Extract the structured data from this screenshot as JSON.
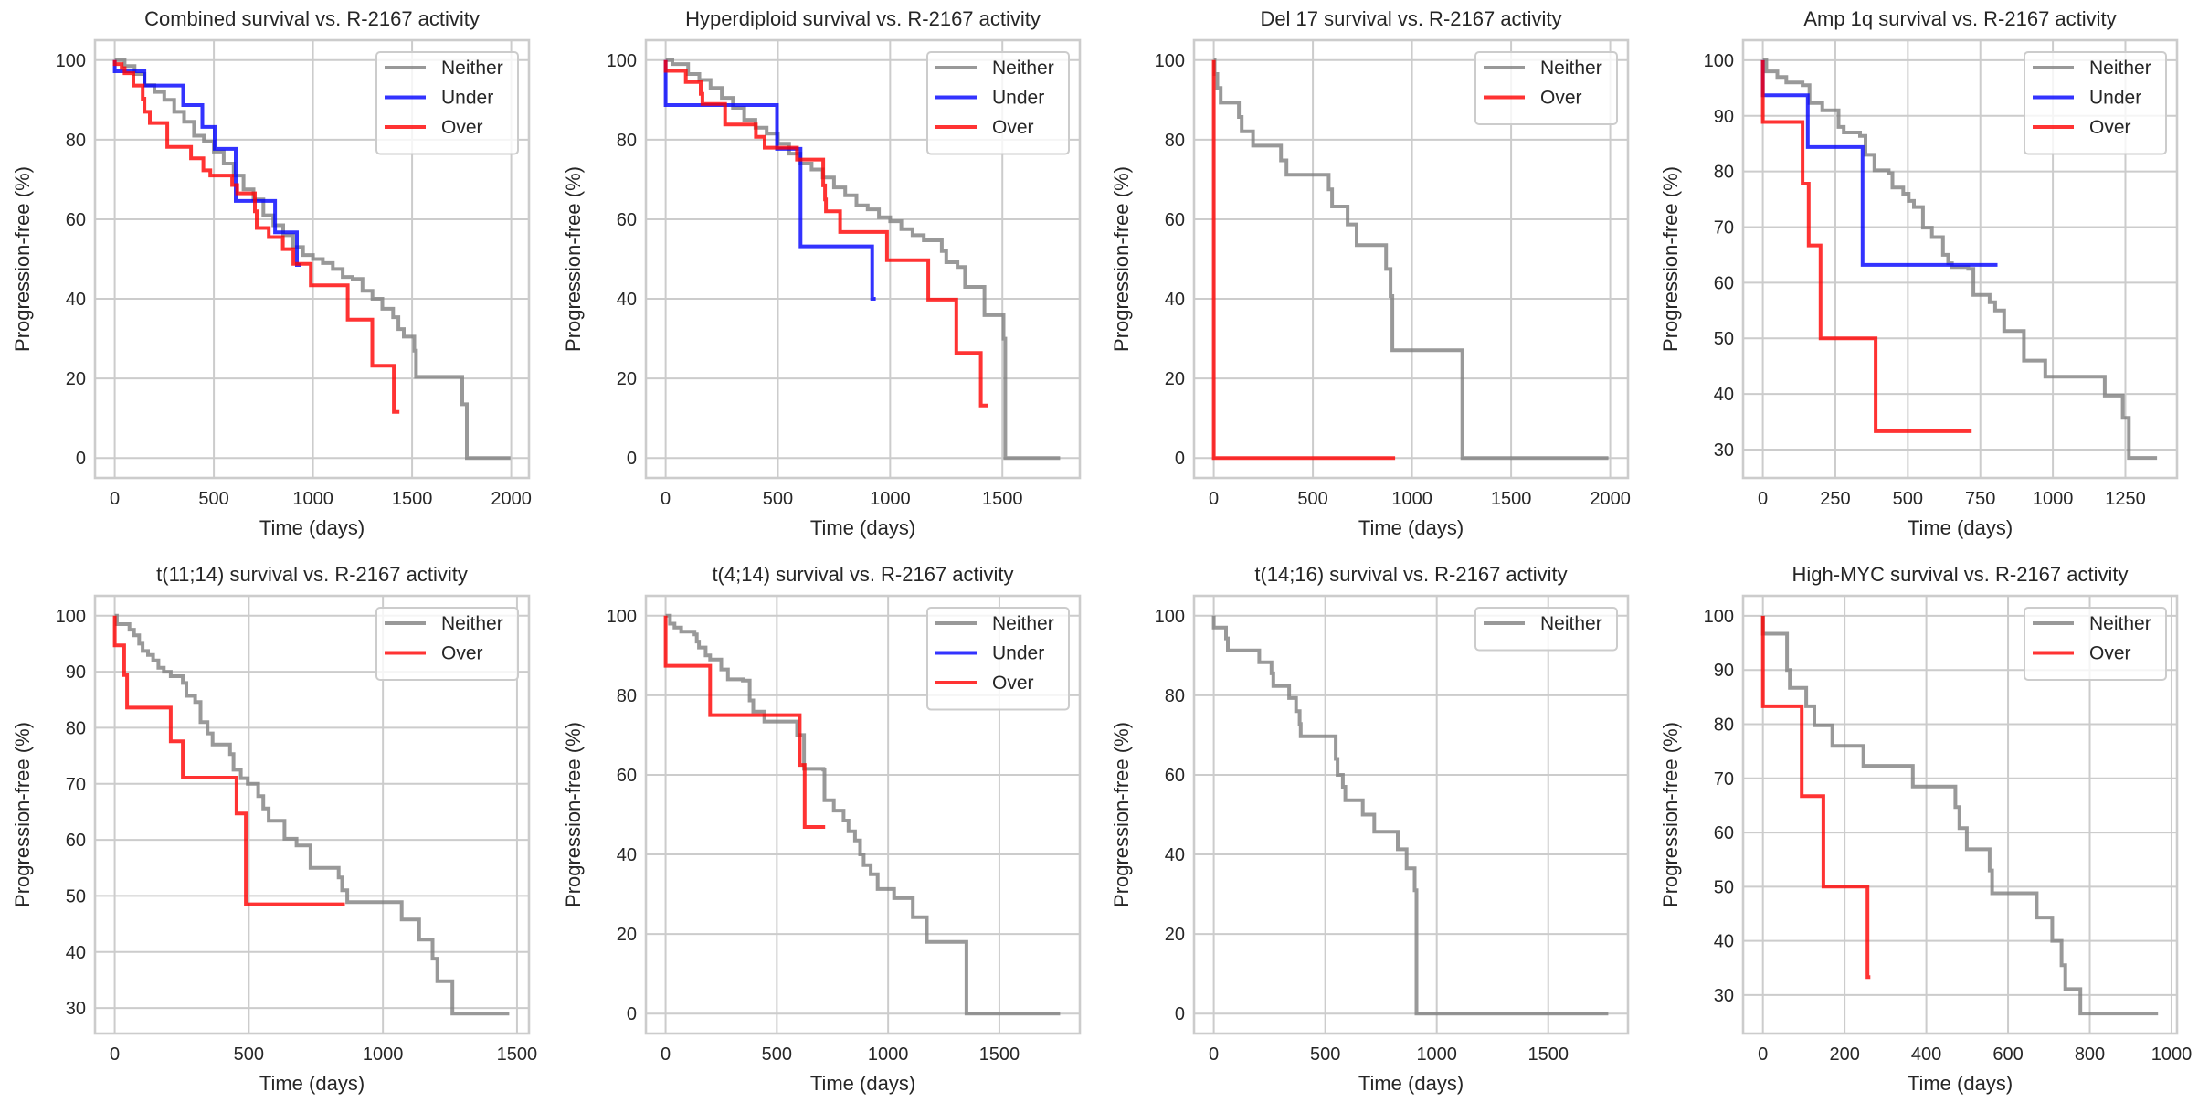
{
  "colors": {
    "Neither": "#808080",
    "Under": "#0000ff",
    "Over": "#ff0000"
  },
  "chart_data": [
    {
      "type": "line",
      "step": true,
      "title": "Combined survival vs. R-2167 activity",
      "xlabel": "Time (days)",
      "ylabel": "Progression-free (%)",
      "xlim": [
        -99.5,
        2089.5
      ],
      "ylim": [
        -5,
        105
      ],
      "xticks": [
        0,
        500,
        1000,
        1500,
        2000
      ],
      "yticks": [
        0,
        20,
        40,
        60,
        80,
        100
      ],
      "grid": true,
      "legend": {
        "position": "top-right",
        "entries": [
          "Neither",
          "Under",
          "Over"
        ]
      },
      "series": [
        {
          "name": "Neither",
          "x": [
            0,
            50,
            100,
            150,
            200,
            250,
            300,
            350,
            400,
            450,
            500,
            550,
            600,
            650,
            700,
            750,
            800,
            850,
            900,
            950,
            1000,
            1050,
            1100,
            1150,
            1200,
            1250,
            1300,
            1350,
            1404,
            1431,
            1458,
            1511,
            1520,
            1753,
            1776,
            1996
          ],
          "y": [
            100,
            98.5,
            96.5,
            93.7,
            92,
            90,
            87,
            84.5,
            81,
            79.5,
            77,
            74,
            71,
            67.5,
            65,
            61,
            58.5,
            56,
            53,
            51,
            50,
            49,
            47.5,
            45.5,
            45,
            42,
            40,
            37.5,
            35.4,
            32.4,
            30.5,
            27,
            20.4,
            13.5,
            0,
            0
          ]
        },
        {
          "name": "Under",
          "x": [
            0,
            0,
            150,
            345,
            442,
            504,
            610,
            809,
            919,
            940
          ],
          "y": [
            100,
            97.2,
            93.6,
            88.7,
            83.2,
            77.7,
            64.6,
            56.7,
            48.5,
            48.5
          ]
        },
        {
          "name": "Over",
          "x": [
            0,
            0,
            35,
            50,
            94,
            141,
            150,
            177,
            265,
            385,
            447,
            482,
            592,
            618,
            707,
            716,
            777,
            848,
            901,
            989,
            1175,
            1299,
            1408,
            1436
          ],
          "y": [
            100,
            99,
            98,
            96.7,
            93.6,
            90.3,
            87,
            84.2,
            78.2,
            75.3,
            72.3,
            71,
            68.6,
            66.5,
            62,
            57.8,
            55.5,
            52.5,
            48.8,
            43.4,
            34.8,
            23.2,
            11.6,
            11.6
          ]
        }
      ]
    },
    {
      "type": "line",
      "step": true,
      "title": "Hyperdiploid survival vs. R-2167 activity",
      "xlabel": "Time (days)",
      "ylabel": "Progression-free (%)",
      "xlim": [
        -88,
        1845
      ],
      "ylim": [
        -5,
        105
      ],
      "xticks": [
        0,
        500,
        1000,
        1500
      ],
      "yticks": [
        0,
        20,
        40,
        60,
        80,
        100
      ],
      "grid": true,
      "legend": {
        "position": "top-right",
        "entries": [
          "Neither",
          "Under",
          "Over"
        ]
      },
      "series": [
        {
          "name": "Neither",
          "x": [
            0,
            30,
            100,
            150,
            200,
            250,
            300,
            350,
            400,
            450,
            500,
            550,
            600,
            650,
            700,
            750,
            800,
            850,
            900,
            950,
            1000,
            1050,
            1100,
            1150,
            1200,
            1230,
            1250,
            1300,
            1334,
            1420,
            1505,
            1513,
            1757
          ],
          "y": [
            100,
            99,
            96.5,
            95,
            93,
            90.5,
            88,
            85,
            83,
            81.5,
            79,
            76.5,
            74,
            72.5,
            70.5,
            68,
            66,
            63.5,
            62.5,
            60.5,
            59.5,
            57.5,
            56,
            54.7,
            54.7,
            52,
            49.2,
            48,
            43,
            35.9,
            30,
            0,
            0
          ]
        },
        {
          "name": "Under",
          "x": [
            0,
            0,
            496,
            601,
            920,
            936
          ],
          "y": [
            100,
            88.7,
            77.7,
            53.2,
            40,
            40
          ]
        },
        {
          "name": "Over",
          "x": [
            0,
            0,
            90,
            156,
            164,
            265,
            402,
            441,
            585,
            702,
            710,
            714,
            777,
            986,
            1170,
            1295,
            1404,
            1435
          ],
          "y": [
            100,
            97.3,
            94.5,
            91.5,
            89,
            83.8,
            80.7,
            78,
            75,
            68.5,
            65,
            62,
            56.8,
            49.7,
            39.8,
            26.4,
            13.2,
            13.2
          ]
        }
      ]
    },
    {
      "type": "line",
      "step": true,
      "title": "Del 17 survival vs. R-2167 activity",
      "xlabel": "Time (days)",
      "ylabel": "Progression-free (%)",
      "xlim": [
        -99.5,
        2089.5
      ],
      "ylim": [
        -5,
        105
      ],
      "xticks": [
        0,
        500,
        1000,
        1500,
        2000
      ],
      "yticks": [
        0,
        20,
        40,
        60,
        80,
        100
      ],
      "grid": true,
      "legend": {
        "position": "top-right",
        "entries": [
          "Neither",
          "Over"
        ]
      },
      "series": [
        {
          "name": "Neither",
          "x": [
            0,
            4,
            18,
            35,
            127,
            141,
            198,
            339,
            367,
            580,
            597,
            675,
            721,
            869,
            892,
            901,
            1254,
            1991
          ],
          "y": [
            100,
            96.5,
            93,
            89.3,
            85.7,
            82.1,
            78.5,
            74.8,
            71.2,
            67.5,
            63.2,
            58.7,
            53.5,
            47.5,
            40.7,
            27.1,
            0,
            0
          ]
        },
        {
          "name": "Over",
          "x": [
            0,
            0,
            915
          ],
          "y": [
            100,
            0,
            0
          ]
        }
      ]
    },
    {
      "type": "line",
      "step": true,
      "title": "Amp 1q survival vs. R-2167 activity",
      "xlabel": "Time (days)",
      "ylabel": "Progression-free (%)",
      "xlim": [
        -68,
        1428
      ],
      "ylim": [
        24.9,
        103.6
      ],
      "xticks": [
        0,
        250,
        500,
        750,
        1000,
        1250
      ],
      "yticks": [
        30,
        40,
        50,
        60,
        70,
        80,
        90,
        100
      ],
      "grid": true,
      "legend": {
        "position": "top-right",
        "entries": [
          "Neither",
          "Under",
          "Over"
        ]
      },
      "series": [
        {
          "name": "Neither",
          "x": [
            0,
            12,
            50,
            81,
            137,
            161,
            205,
            261,
            279,
            335,
            354,
            385,
            434,
            447,
            484,
            503,
            521,
            552,
            583,
            621,
            639,
            652,
            708,
            726,
            782,
            801,
            832,
            881,
            900,
            974,
            1179,
            1241,
            1262,
            1359
          ],
          "y": [
            100,
            98,
            97,
            96,
            95.5,
            92.3,
            91,
            88,
            87,
            86.4,
            83,
            80.2,
            79.7,
            77.1,
            76,
            74.7,
            73.6,
            69.9,
            68.2,
            65,
            63.5,
            62.8,
            62.5,
            57.8,
            56.5,
            55,
            51.3,
            51.3,
            46,
            43.1,
            39.7,
            35.7,
            28.5,
            28.5
          ]
        },
        {
          "name": "Under",
          "x": [
            0,
            0,
            155,
            344,
            809
          ],
          "y": [
            100,
            93.7,
            84.4,
            63.2,
            63.2
          ]
        },
        {
          "name": "Over",
          "x": [
            0,
            0,
            137,
            158,
            199,
            389,
            720
          ],
          "y": [
            100,
            88.9,
            77.8,
            66.7,
            50,
            33.3,
            33.3
          ]
        }
      ]
    },
    {
      "type": "line",
      "step": true,
      "title": "t(11;14) survival vs. R-2167 activity",
      "xlabel": "Time (days)",
      "ylabel": "Progression-free (%)",
      "xlim": [
        -73.5,
        1544.5
      ],
      "ylim": [
        25.45,
        103.55
      ],
      "xticks": [
        0,
        500,
        1000,
        1500
      ],
      "yticks": [
        30,
        40,
        50,
        60,
        70,
        80,
        90,
        100
      ],
      "grid": true,
      "legend": {
        "position": "top-right",
        "entries": [
          "Neither",
          "Over"
        ]
      },
      "series": [
        {
          "name": "Neither",
          "x": [
            0,
            8,
            55,
            72,
            91,
            104,
            124,
            143,
            163,
            183,
            209,
            254,
            267,
            300,
            320,
            346,
            365,
            430,
            443,
            470,
            496,
            535,
            554,
            574,
            633,
            678,
            730,
            835,
            848,
            867,
            1070,
            1135,
            1185,
            1203,
            1259,
            1471
          ],
          "y": [
            100,
            98.5,
            97.5,
            96.5,
            95,
            93.7,
            93,
            92,
            90.7,
            90,
            89.2,
            88,
            85.7,
            84.6,
            81,
            79,
            77,
            75.3,
            72.5,
            71,
            70,
            67.8,
            65.6,
            63.4,
            60.2,
            59,
            55,
            53.3,
            51,
            48.9,
            45.8,
            42.2,
            38.8,
            34.8,
            29,
            29
          ]
        },
        {
          "name": "Over",
          "x": [
            0,
            0,
            35,
            46,
            209,
            254,
            454,
            489,
            858
          ],
          "y": [
            100,
            94.7,
            89.4,
            83.6,
            77.6,
            71.1,
            64.7,
            48.5,
            48.5
          ]
        }
      ]
    },
    {
      "type": "line",
      "step": true,
      "title": "t(4;14) survival vs. R-2167 activity",
      "xlabel": "Time (days)",
      "ylabel": "Progression-free (%)",
      "xlim": [
        -88.5,
        1861.5
      ],
      "ylim": [
        -5,
        105
      ],
      "xticks": [
        0,
        500,
        1000,
        1500
      ],
      "yticks": [
        0,
        20,
        40,
        60,
        80,
        100
      ],
      "grid": true,
      "legend": {
        "position": "top-right",
        "entries": [
          "Neither",
          "Under",
          "Over"
        ]
      },
      "series": [
        {
          "name": "Neither",
          "x": [
            0,
            20,
            40,
            70,
            130,
            140,
            150,
            180,
            200,
            250,
            280,
            347,
            378,
            394,
            444,
            575,
            591,
            622,
            709,
            714,
            756,
            800,
            822,
            851,
            874,
            890,
            922,
            953,
            1027,
            1111,
            1174,
            1352,
            1773
          ],
          "y": [
            100,
            98,
            97,
            96,
            95.3,
            93.5,
            92,
            90,
            89,
            86.5,
            84,
            83.7,
            78.7,
            75.9,
            73.4,
            73.4,
            70,
            61.5,
            61.3,
            53.6,
            51,
            48.5,
            45.8,
            43.5,
            40,
            37.3,
            35,
            31.3,
            29,
            24.2,
            18,
            0,
            0
          ]
        },
        {
          "name": "Under",
          "x": [],
          "y": []
        },
        {
          "name": "Over",
          "x": [
            0,
            0,
            200,
            603,
            625,
            717
          ],
          "y": [
            100,
            87.4,
            75,
            62.5,
            46.9,
            46.9
          ]
        }
      ]
    },
    {
      "type": "line",
      "step": true,
      "title": "t(14;16) survival vs. R-2167 activity",
      "xlabel": "Time (days)",
      "ylabel": "Progression-free (%)",
      "xlim": [
        -88.5,
        1857.5
      ],
      "ylim": [
        -5,
        105
      ],
      "xticks": [
        0,
        500,
        1000,
        1500
      ],
      "yticks": [
        0,
        20,
        40,
        60,
        80,
        100
      ],
      "grid": true,
      "legend": {
        "position": "top-right",
        "entries": [
          "Neither"
        ]
      },
      "series": [
        {
          "name": "Neither",
          "x": [
            0,
            0,
            55,
            63,
            204,
            259,
            267,
            338,
            369,
            385,
            390,
            547,
            555,
            579,
            590,
            668,
            720,
            825,
            865,
            901,
            909,
            1769
          ],
          "y": [
            100,
            97,
            94.3,
            91.3,
            88.3,
            85.5,
            82.3,
            79.3,
            76,
            72.8,
            69.7,
            64,
            60,
            57,
            53.6,
            50,
            45.7,
            41.3,
            36.5,
            31,
            0,
            0
          ]
        }
      ]
    },
    {
      "type": "line",
      "step": true,
      "title": "High-MYC survival vs. R-2167 activity",
      "xlabel": "Time (days)",
      "ylabel": "Progression-free (%)",
      "xlim": [
        -48.5,
        1013.5
      ],
      "ylim": [
        22.9,
        103.7
      ],
      "xticks": [
        0,
        200,
        400,
        600,
        800,
        1000
      ],
      "yticks": [
        30,
        40,
        50,
        60,
        70,
        80,
        90,
        100
      ],
      "grid": true,
      "legend": {
        "position": "top-right",
        "entries": [
          "Neither",
          "Over"
        ]
      },
      "series": [
        {
          "name": "Neither",
          "x": [
            0,
            0,
            59,
            66,
            106,
            126,
            170,
            246,
            367,
            471,
            481,
            499,
            555,
            561,
            670,
            708,
            731,
            740,
            777,
            967
          ],
          "y": [
            100,
            96.7,
            90,
            86.7,
            83.3,
            79.8,
            76,
            72.3,
            68.5,
            64.7,
            60.8,
            56.9,
            53,
            48.8,
            44.3,
            40,
            35.5,
            31.1,
            26.6,
            26.6
          ]
        },
        {
          "name": "Over",
          "x": [
            0,
            0,
            95,
            148,
            256,
            263
          ],
          "y": [
            100,
            83.3,
            66.7,
            50,
            33.3,
            33.3
          ]
        }
      ]
    }
  ]
}
